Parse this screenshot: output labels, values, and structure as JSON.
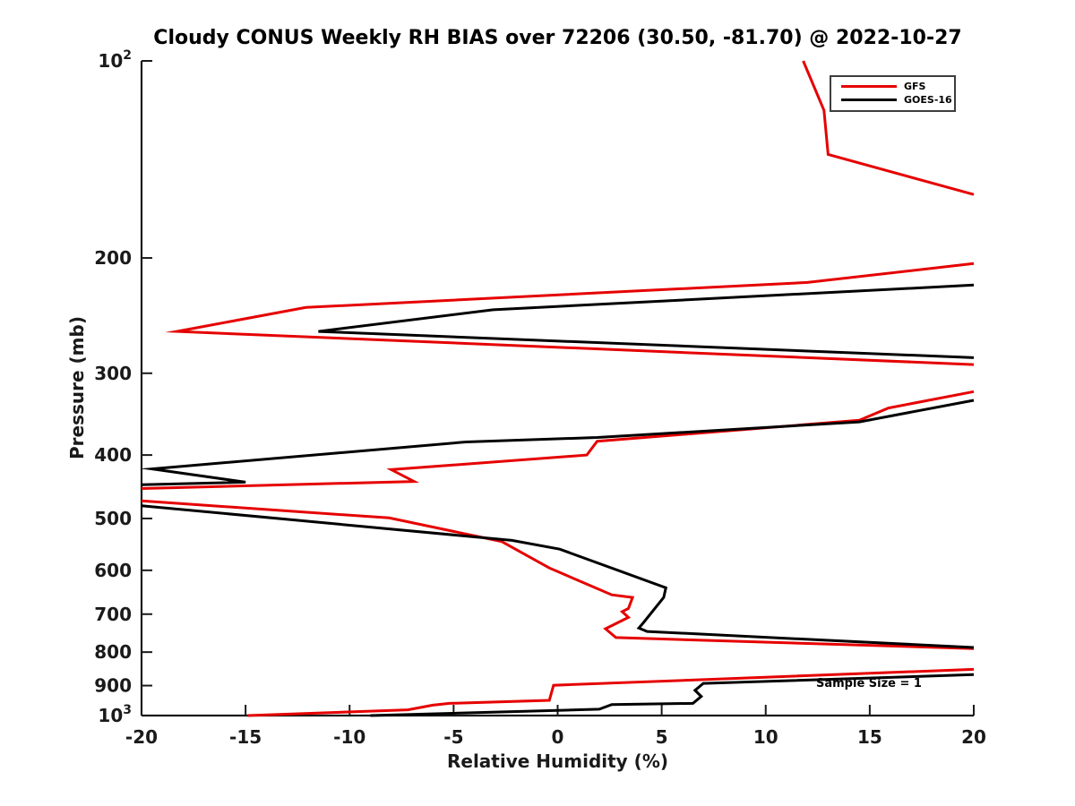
{
  "title": "Cloudy CONUS Weekly RH BIAS over 72206 (30.50, -81.70) @ 2022-10-27",
  "annotation": {
    "sample_size_note": "Sample Size = 1"
  },
  "axes": {
    "xlabel": "Relative Humidity (%)",
    "ylabel": "Pressure (mb)",
    "x_ticks": [
      {
        "v": -20,
        "label": "-20"
      },
      {
        "v": -15,
        "label": "-15"
      },
      {
        "v": -10,
        "label": "-10"
      },
      {
        "v": -5,
        "label": "-5"
      },
      {
        "v": 0,
        "label": "0"
      },
      {
        "v": 5,
        "label": "5"
      },
      {
        "v": 10,
        "label": "10"
      },
      {
        "v": 15,
        "label": "15"
      },
      {
        "v": 20,
        "label": "20"
      }
    ],
    "y_ticks": [
      {
        "v": 100,
        "label": "10^2"
      },
      {
        "v": 200,
        "label": "200"
      },
      {
        "v": 300,
        "label": "300"
      },
      {
        "v": 400,
        "label": "400"
      },
      {
        "v": 500,
        "label": "500"
      },
      {
        "v": 600,
        "label": "600"
      },
      {
        "v": 700,
        "label": "700"
      },
      {
        "v": 800,
        "label": "800"
      },
      {
        "v": 900,
        "label": "900"
      },
      {
        "v": 1000,
        "label": "10^3"
      }
    ],
    "spine_color": "#1a1a1a"
  },
  "legend": [
    {
      "name": "GFS",
      "color": "#e60000"
    },
    {
      "name": "GOES-16",
      "color": "#000000"
    }
  ],
  "chart_data": {
    "type": "line",
    "title": "Cloudy CONUS Weekly RH BIAS over 72206 (30.50, -81.70) @ 2022-10-27",
    "xlabel": "Relative Humidity (%)",
    "ylabel": "Pressure (mb)",
    "xlim": [
      -20,
      20
    ],
    "ylim": [
      100,
      1000
    ],
    "yscale": "log",
    "y_inverted": true,
    "grid": false,
    "legend_position": "upper right",
    "note": "points are [rh_bias_percent, pressure_mb]; segments are separated where the curve exits the x-limits (clipped at -20 or +20)",
    "series": [
      {
        "name": "GFS",
        "color": "#e60000",
        "linewidth": 3,
        "segments": [
          [
            [
              11.8,
              100
            ],
            [
              12.8,
              119
            ],
            [
              13.0,
              139
            ],
            [
              20,
              160
            ]
          ],
          [
            [
              20,
              204
            ],
            [
              12.0,
              218
            ],
            [
              -12.1,
              238
            ],
            [
              -18.3,
              259
            ],
            [
              20,
              291
            ]
          ],
          [
            [
              20,
              320
            ],
            [
              15.9,
              339
            ],
            [
              14.5,
              354
            ],
            [
              1.9,
              381
            ],
            [
              1.4,
              400
            ],
            [
              -8.0,
              421
            ],
            [
              -6.9,
              439
            ],
            [
              -20,
              450
            ]
          ],
          [
            [
              -20,
              470
            ],
            [
              -8.1,
              499
            ],
            [
              -2.7,
              542
            ],
            [
              -0.4,
              595
            ],
            [
              2.6,
              654
            ],
            [
              3.6,
              660
            ],
            [
              3.4,
              686
            ],
            [
              3.1,
              694
            ],
            [
              3.4,
              708
            ],
            [
              2.3,
              737
            ],
            [
              2.8,
              760
            ],
            [
              20,
              790
            ]
          ],
          [
            [
              20,
              850
            ],
            [
              -0.2,
              899
            ],
            [
              -0.4,
              948
            ],
            [
              -5.2,
              958
            ],
            [
              -6.0,
              964
            ],
            [
              -7.2,
              980
            ],
            [
              -14.9,
              1000
            ]
          ]
        ]
      },
      {
        "name": "GOES-16",
        "color": "#000000",
        "linewidth": 3,
        "segments": [
          [
            [
              20,
              220
            ],
            [
              -3.1,
              240
            ],
            [
              -11.5,
              259
            ],
            [
              20,
              284
            ]
          ],
          [
            [
              20,
              330
            ],
            [
              14.5,
              356
            ],
            [
              1.9,
              376
            ],
            [
              -4.4,
              382
            ],
            [
              -19.5,
              420
            ],
            [
              -15.0,
              440
            ],
            [
              -20,
              444
            ]
          ],
          [
            [
              -20,
              478
            ],
            [
              -2.2,
              540
            ],
            [
              0.1,
              557
            ],
            [
              5.2,
              638
            ],
            [
              5.1,
              660
            ],
            [
              4.1,
              723
            ],
            [
              3.9,
              735
            ],
            [
              4.3,
              744
            ],
            [
              20,
              787
            ]
          ],
          [
            [
              20,
              866
            ],
            [
              7.0,
              893
            ],
            [
              6.6,
              915
            ],
            [
              6.9,
              935
            ],
            [
              6.5,
              958
            ],
            [
              2.6,
              962
            ],
            [
              2.0,
              978
            ],
            [
              -9.0,
              1000
            ]
          ]
        ]
      }
    ]
  }
}
